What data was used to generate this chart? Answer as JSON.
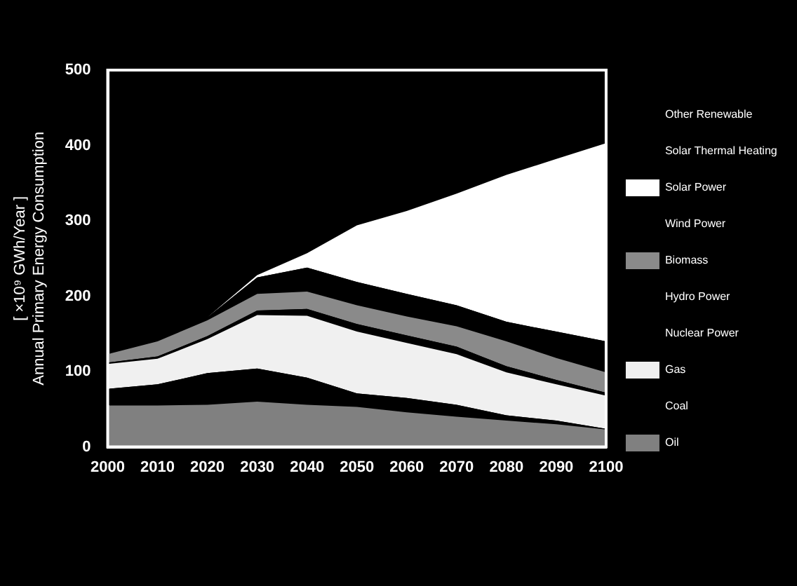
{
  "chart_data": {
    "type": "area",
    "stacked": true,
    "ylabel": "[ ×10⁹ GWh/Year ] Annual Primary Energy Consumption",
    "x": [
      2000,
      2010,
      2020,
      2030,
      2040,
      2050,
      2060,
      2070,
      2080,
      2090,
      2100
    ],
    "xlim": [
      2000,
      2100
    ],
    "xticks": [
      2000,
      2010,
      2020,
      2030,
      2040,
      2050,
      2060,
      2070,
      2080,
      2090,
      2100
    ],
    "ylim": [
      0,
      500
    ],
    "yticks": [
      0,
      100,
      200,
      300,
      400,
      500
    ],
    "grid": false,
    "legend": "right",
    "series": [
      {
        "name": "Oil",
        "color": "#808080",
        "values": [
          55,
          55,
          56,
          60,
          56,
          53,
          46,
          40,
          35,
          30,
          23
        ]
      },
      {
        "name": "Coal",
        "color": "#000000",
        "values": [
          22,
          28,
          42,
          44,
          36,
          18,
          19,
          16,
          7,
          5,
          1
        ]
      },
      {
        "name": "Gas",
        "color": "#f0f0f0",
        "values": [
          33,
          34,
          45,
          71,
          82,
          82,
          73,
          67,
          57,
          48,
          44
        ]
      },
      {
        "name": "Nuclear Power",
        "color": "#000000",
        "values": [
          2,
          3,
          4,
          6,
          9,
          10,
          10,
          10,
          8,
          6,
          4
        ]
      },
      {
        "name": "Hydro Power",
        "values": [
          null,
          null,
          null,
          null,
          null,
          null,
          null,
          null,
          null,
          null,
          null
        ]
      },
      {
        "name": "Biomass",
        "color": "#8a8a8a",
        "values": [
          11,
          20,
          21,
          22,
          23,
          25,
          25,
          27,
          33,
          29,
          27
        ]
      },
      {
        "name": "Wind Power",
        "color": "#000000",
        "values": [
          0,
          3,
          4,
          22,
          32,
          31,
          30,
          28,
          26,
          35,
          41
        ]
      },
      {
        "name": "Solar Power",
        "color": "#ffffff",
        "values": [
          0,
          0,
          0,
          3,
          19,
          75,
          110,
          148,
          195,
          229,
          263
        ]
      },
      {
        "name": "Solar Thermal Heating",
        "values": [
          null,
          null,
          null,
          null,
          null,
          null,
          null,
          null,
          null,
          null,
          null
        ]
      },
      {
        "name": "Other Renewable",
        "values": [
          null,
          null,
          null,
          null,
          null,
          null,
          null,
          null,
          null,
          null,
          null
        ]
      }
    ]
  }
}
